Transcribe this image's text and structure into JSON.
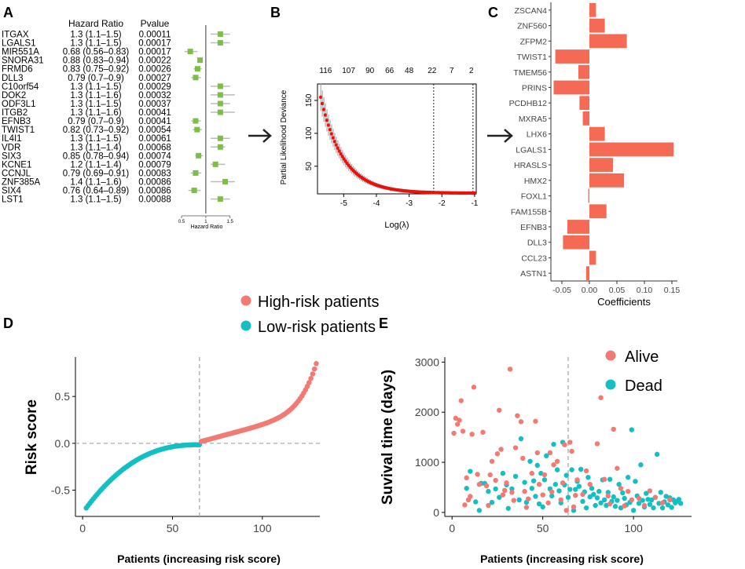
{
  "colors": {
    "red": "#F37A72",
    "teal": "#14BFC4",
    "lasso_red": "#E8120C",
    "bar_red": "#F46A54",
    "forest_green": "#7BC043",
    "grey": "#AAAAAA",
    "dark": "#000000"
  },
  "panels": {
    "A": "A",
    "B": "B",
    "C": "C",
    "D": "D",
    "E": "E"
  },
  "chart_data": [
    {
      "type": "forest",
      "panel": "A",
      "col_hr": "Hazard Ratio",
      "col_p": "Pvalue",
      "xlabel": "Hazard Ratio",
      "xticks": [
        0.5,
        1,
        1.5
      ],
      "xlim": [
        0.45,
        1.7
      ],
      "ref": 1,
      "rows": [
        {
          "gene": "ITGAX",
          "hr_text": "1.3 (1.1–1.5)",
          "p": "0.00011",
          "hr": 1.3,
          "lo": 1.1,
          "hi": 1.5
        },
        {
          "gene": "LGALS1",
          "hr_text": "1.3 (1.1–1.5)",
          "p": "0.00017",
          "hr": 1.3,
          "lo": 1.1,
          "hi": 1.5
        },
        {
          "gene": "MIR551A",
          "hr_text": "0.68 (0.56–0.83)",
          "p": "0.00017",
          "hr": 0.68,
          "lo": 0.56,
          "hi": 0.83
        },
        {
          "gene": "SNORA31",
          "hr_text": "0.88 (0.83–0.94)",
          "p": "0.00022",
          "hr": 0.88,
          "lo": 0.83,
          "hi": 0.94
        },
        {
          "gene": "FRMD6",
          "hr_text": "0.83 (0.75–0.92)",
          "p": "0.00026",
          "hr": 0.83,
          "lo": 0.75,
          "hi": 0.92
        },
        {
          "gene": "DLL3",
          "hr_text": "0.79 (0.7–0.9)",
          "p": "0.00027",
          "hr": 0.79,
          "lo": 0.7,
          "hi": 0.9
        },
        {
          "gene": "C10orf54",
          "hr_text": "1.3 (1.1–1.5)",
          "p": "0.00029",
          "hr": 1.3,
          "lo": 1.1,
          "hi": 1.5
        },
        {
          "gene": "DOK2",
          "hr_text": "1.3 (1.1–1.6)",
          "p": "0.00032",
          "hr": 1.3,
          "lo": 1.1,
          "hi": 1.6
        },
        {
          "gene": "ODF3L1",
          "hr_text": "1.3 (1.1–1.5)",
          "p": "0.00037",
          "hr": 1.3,
          "lo": 1.1,
          "hi": 1.5
        },
        {
          "gene": "ITGB2",
          "hr_text": "1.3 (1.1–1.6)",
          "p": "0.00041",
          "hr": 1.3,
          "lo": 1.1,
          "hi": 1.6
        },
        {
          "gene": "EFNB3",
          "hr_text": "0.79 (0.7–0.9)",
          "p": "0.00041",
          "hr": 0.79,
          "lo": 0.7,
          "hi": 0.9
        },
        {
          "gene": "TWIST1",
          "hr_text": "0.82 (0.73–0.92)",
          "p": "0.00054",
          "hr": 0.82,
          "lo": 0.73,
          "hi": 0.92
        },
        {
          "gene": "IL4I1",
          "hr_text": "1.3 (1.1–1.5)",
          "p": "0.00061",
          "hr": 1.3,
          "lo": 1.1,
          "hi": 1.5
        },
        {
          "gene": "VDR",
          "hr_text": "1.3 (1.1–1.4)",
          "p": "0.00068",
          "hr": 1.3,
          "lo": 1.1,
          "hi": 1.4
        },
        {
          "gene": "SIX3",
          "hr_text": "0.85 (0.78–0.94)",
          "p": "0.00074",
          "hr": 0.85,
          "lo": 0.78,
          "hi": 0.94
        },
        {
          "gene": "KCNE1",
          "hr_text": "1.2 (1.1–1.4)",
          "p": "0.00079",
          "hr": 1.2,
          "lo": 1.1,
          "hi": 1.4
        },
        {
          "gene": "CCNJL",
          "hr_text": "0.79 (0.69–0.91)",
          "p": "0.00083",
          "hr": 0.79,
          "lo": 0.69,
          "hi": 0.91
        },
        {
          "gene": "ZNF385A",
          "hr_text": "1.4 (1.1–1.6)",
          "p": "0.00086",
          "hr": 1.4,
          "lo": 1.1,
          "hi": 1.6
        },
        {
          "gene": "SIX4",
          "hr_text": "0.76 (0.64–0.89)",
          "p": "0.00086",
          "hr": 0.76,
          "lo": 0.64,
          "hi": 0.89
        },
        {
          "gene": "LST1",
          "hr_text": "1.3 (1.1–1.5)",
          "p": "0.00088",
          "hr": 1.3,
          "lo": 1.1,
          "hi": 1.5
        }
      ]
    },
    {
      "type": "line",
      "panel": "B",
      "xlabel": "Log(λ)",
      "ylabel": "Partial Likelihood Deviance",
      "xlim": [
        -5.8,
        -0.95
      ],
      "ylim": [
        8,
        175
      ],
      "xticks": [
        -5,
        -4,
        -3,
        -2,
        -1
      ],
      "yticks": [
        50,
        100,
        150
      ],
      "top_ticks": [
        {
          "x": -5.55,
          "label": "116"
        },
        {
          "x": -4.85,
          "label": "107"
        },
        {
          "x": -4.2,
          "label": "90"
        },
        {
          "x": -3.6,
          "label": "66"
        },
        {
          "x": -3.0,
          "label": "48"
        },
        {
          "x": -2.3,
          "label": "22"
        },
        {
          "x": -1.7,
          "label": "7"
        },
        {
          "x": -1.1,
          "label": "2"
        }
      ],
      "vlines": [
        -2.25,
        -1.05
      ],
      "curve": {
        "start": -5.7,
        "end": -1.0,
        "y0": 155,
        "floor": 9,
        "decay": 1.45,
        "err0": 20
      }
    },
    {
      "type": "bar",
      "panel": "C",
      "orientation": "horizontal",
      "xlabel": "Coefficients",
      "xlim": [
        -0.07,
        0.16
      ],
      "xticks": [
        -0.05,
        0,
        0.05,
        0.1,
        0.15
      ],
      "xtick_labels": [
        "-0.05",
        "0.00",
        "0.05",
        "0.10",
        "0.15"
      ],
      "categories": [
        "ZSCAN4",
        "ZNF560",
        "ZFPM2",
        "TWIST1",
        "TMEM56",
        "PRINS",
        "PCDHB12",
        "MXRA5",
        "LHX6",
        "LGALS1",
        "HRASLS",
        "HMX2",
        "FOXL1",
        "FAM155B",
        "EFNB3",
        "DLL3",
        "CCL23",
        "ASTN1"
      ],
      "values": [
        0.012,
        0.028,
        0.068,
        -0.062,
        -0.02,
        -0.065,
        -0.018,
        -0.012,
        0.028,
        0.153,
        0.043,
        0.063,
        -0.002,
        0.031,
        -0.04,
        -0.048,
        0.012,
        -0.006
      ]
    },
    {
      "type": "scatter",
      "panel": "D",
      "xlabel": "Patients (increasing risk score)",
      "ylabel": "Risk score",
      "xlim": [
        -4,
        132
      ],
      "ylim": [
        -0.78,
        0.92
      ],
      "xticks": [
        0,
        50,
        100
      ],
      "yticks": [
        -0.5,
        0,
        0.5
      ],
      "ytick_labels": [
        "-0.5",
        "0.0",
        "0.5"
      ],
      "cutoff_x": 65,
      "hline_y": 0,
      "legend": [
        "High-risk patients",
        "Low-risk patients"
      ],
      "n": 129,
      "low_count": 64,
      "min": -0.69,
      "max": 0.85
    },
    {
      "type": "scatter",
      "panel": "E",
      "xlabel": "Patients (increasing risk score)",
      "ylabel": "Suvival time (days)",
      "xlim": [
        -4,
        132
      ],
      "ylim": [
        -80,
        3100
      ],
      "xticks": [
        0,
        50,
        100
      ],
      "yticks": [
        0,
        1000,
        2000,
        3000
      ],
      "cutoff_x": 64,
      "legend": [
        "Alive",
        "Dead"
      ],
      "alive": [
        [
          1,
          1580
        ],
        [
          2,
          1880
        ],
        [
          3,
          1760
        ],
        [
          4,
          1840
        ],
        [
          5,
          2230
        ],
        [
          6,
          1620
        ],
        [
          7,
          150
        ],
        [
          8,
          690
        ],
        [
          9,
          250
        ],
        [
          10,
          320
        ],
        [
          11,
          1560
        ],
        [
          12,
          2500
        ],
        [
          14,
          760
        ],
        [
          15,
          560
        ],
        [
          17,
          1600
        ],
        [
          19,
          530
        ],
        [
          20,
          140
        ],
        [
          21,
          750
        ],
        [
          22,
          1020
        ],
        [
          24,
          640
        ],
        [
          25,
          1170
        ],
        [
          26,
          2040
        ],
        [
          27,
          1260
        ],
        [
          28,
          350
        ],
        [
          29,
          440
        ],
        [
          30,
          590
        ],
        [
          32,
          2860
        ],
        [
          33,
          400
        ],
        [
          34,
          240
        ],
        [
          35,
          1290
        ],
        [
          36,
          1930
        ],
        [
          38,
          1810
        ],
        [
          39,
          1080
        ],
        [
          40,
          420
        ],
        [
          41,
          100
        ],
        [
          42,
          270
        ],
        [
          44,
          780
        ],
        [
          46,
          1820
        ],
        [
          47,
          1190
        ],
        [
          48,
          560
        ],
        [
          50,
          350
        ],
        [
          51,
          750
        ],
        [
          53,
          190
        ],
        [
          54,
          1190
        ],
        [
          55,
          410
        ],
        [
          56,
          950
        ],
        [
          58,
          1020
        ],
        [
          60,
          250
        ],
        [
          61,
          590
        ],
        [
          62,
          1350
        ],
        [
          63,
          40
        ],
        [
          65,
          1400
        ],
        [
          66,
          1220
        ],
        [
          67,
          110
        ],
        [
          68,
          340
        ],
        [
          69,
          650
        ],
        [
          72,
          360
        ],
        [
          74,
          830
        ],
        [
          76,
          560
        ],
        [
          80,
          1370
        ],
        [
          82,
          2290
        ],
        [
          84,
          660
        ],
        [
          86,
          330
        ],
        [
          87,
          170
        ],
        [
          89,
          1660
        ],
        [
          91,
          880
        ],
        [
          93,
          480
        ],
        [
          95,
          130
        ],
        [
          97,
          420
        ],
        [
          99,
          250
        ],
        [
          103,
          280
        ],
        [
          106,
          140
        ],
        [
          109,
          430
        ],
        [
          112,
          300
        ],
        [
          116,
          190
        ],
        [
          120,
          250
        ]
      ],
      "dead": [
        [
          8,
          480
        ],
        [
          10,
          820
        ],
        [
          13,
          210
        ],
        [
          15,
          40
        ],
        [
          16,
          580
        ],
        [
          18,
          580
        ],
        [
          20,
          420
        ],
        [
          22,
          200
        ],
        [
          24,
          470
        ],
        [
          26,
          300
        ],
        [
          28,
          780
        ],
        [
          30,
          550
        ],
        [
          31,
          80
        ],
        [
          33,
          470
        ],
        [
          35,
          720
        ],
        [
          37,
          250
        ],
        [
          38,
          1470
        ],
        [
          40,
          600
        ],
        [
          41,
          200
        ],
        [
          43,
          1020
        ],
        [
          44,
          480
        ],
        [
          45,
          630
        ],
        [
          46,
          320
        ],
        [
          47,
          940
        ],
        [
          48,
          170
        ],
        [
          49,
          780
        ],
        [
          50,
          110
        ],
        [
          51,
          650
        ],
        [
          52,
          1130
        ],
        [
          54,
          470
        ],
        [
          55,
          330
        ],
        [
          56,
          1360
        ],
        [
          57,
          560
        ],
        [
          58,
          850
        ],
        [
          59,
          430
        ],
        [
          60,
          190
        ],
        [
          61,
          1400
        ],
        [
          62,
          550
        ],
        [
          63,
          740
        ],
        [
          64,
          300
        ],
        [
          65,
          460
        ],
        [
          66,
          850
        ],
        [
          67,
          40
        ],
        [
          68,
          460
        ],
        [
          69,
          620
        ],
        [
          70,
          520
        ],
        [
          71,
          860
        ],
        [
          72,
          220
        ],
        [
          73,
          410
        ],
        [
          74,
          90
        ],
        [
          75,
          700
        ],
        [
          76,
          310
        ],
        [
          77,
          480
        ],
        [
          78,
          360
        ],
        [
          79,
          140
        ],
        [
          80,
          290
        ],
        [
          81,
          420
        ],
        [
          82,
          190
        ],
        [
          83,
          650
        ],
        [
          84,
          250
        ],
        [
          85,
          140
        ],
        [
          86,
          400
        ],
        [
          87,
          660
        ],
        [
          88,
          220
        ],
        [
          89,
          310
        ],
        [
          90,
          120
        ],
        [
          91,
          240
        ],
        [
          92,
          560
        ],
        [
          93,
          90
        ],
        [
          94,
          390
        ],
        [
          95,
          280
        ],
        [
          96,
          150
        ],
        [
          97,
          700
        ],
        [
          98,
          200
        ],
        [
          99,
          1650
        ],
        [
          100,
          40
        ],
        [
          101,
          620
        ],
        [
          102,
          330
        ],
        [
          103,
          180
        ],
        [
          104,
          950
        ],
        [
          105,
          240
        ],
        [
          106,
          110
        ],
        [
          107,
          380
        ],
        [
          108,
          260
        ],
        [
          109,
          160
        ],
        [
          110,
          250
        ],
        [
          111,
          90
        ],
        [
          112,
          300
        ],
        [
          113,
          1160
        ],
        [
          114,
          180
        ],
        [
          115,
          400
        ],
        [
          116,
          90
        ],
        [
          117,
          210
        ],
        [
          118,
          320
        ],
        [
          119,
          150
        ],
        [
          120,
          290
        ],
        [
          121,
          100
        ],
        [
          122,
          250
        ],
        [
          123,
          190
        ],
        [
          124,
          220
        ],
        [
          125,
          260
        ],
        [
          126,
          180
        ]
      ]
    }
  ]
}
